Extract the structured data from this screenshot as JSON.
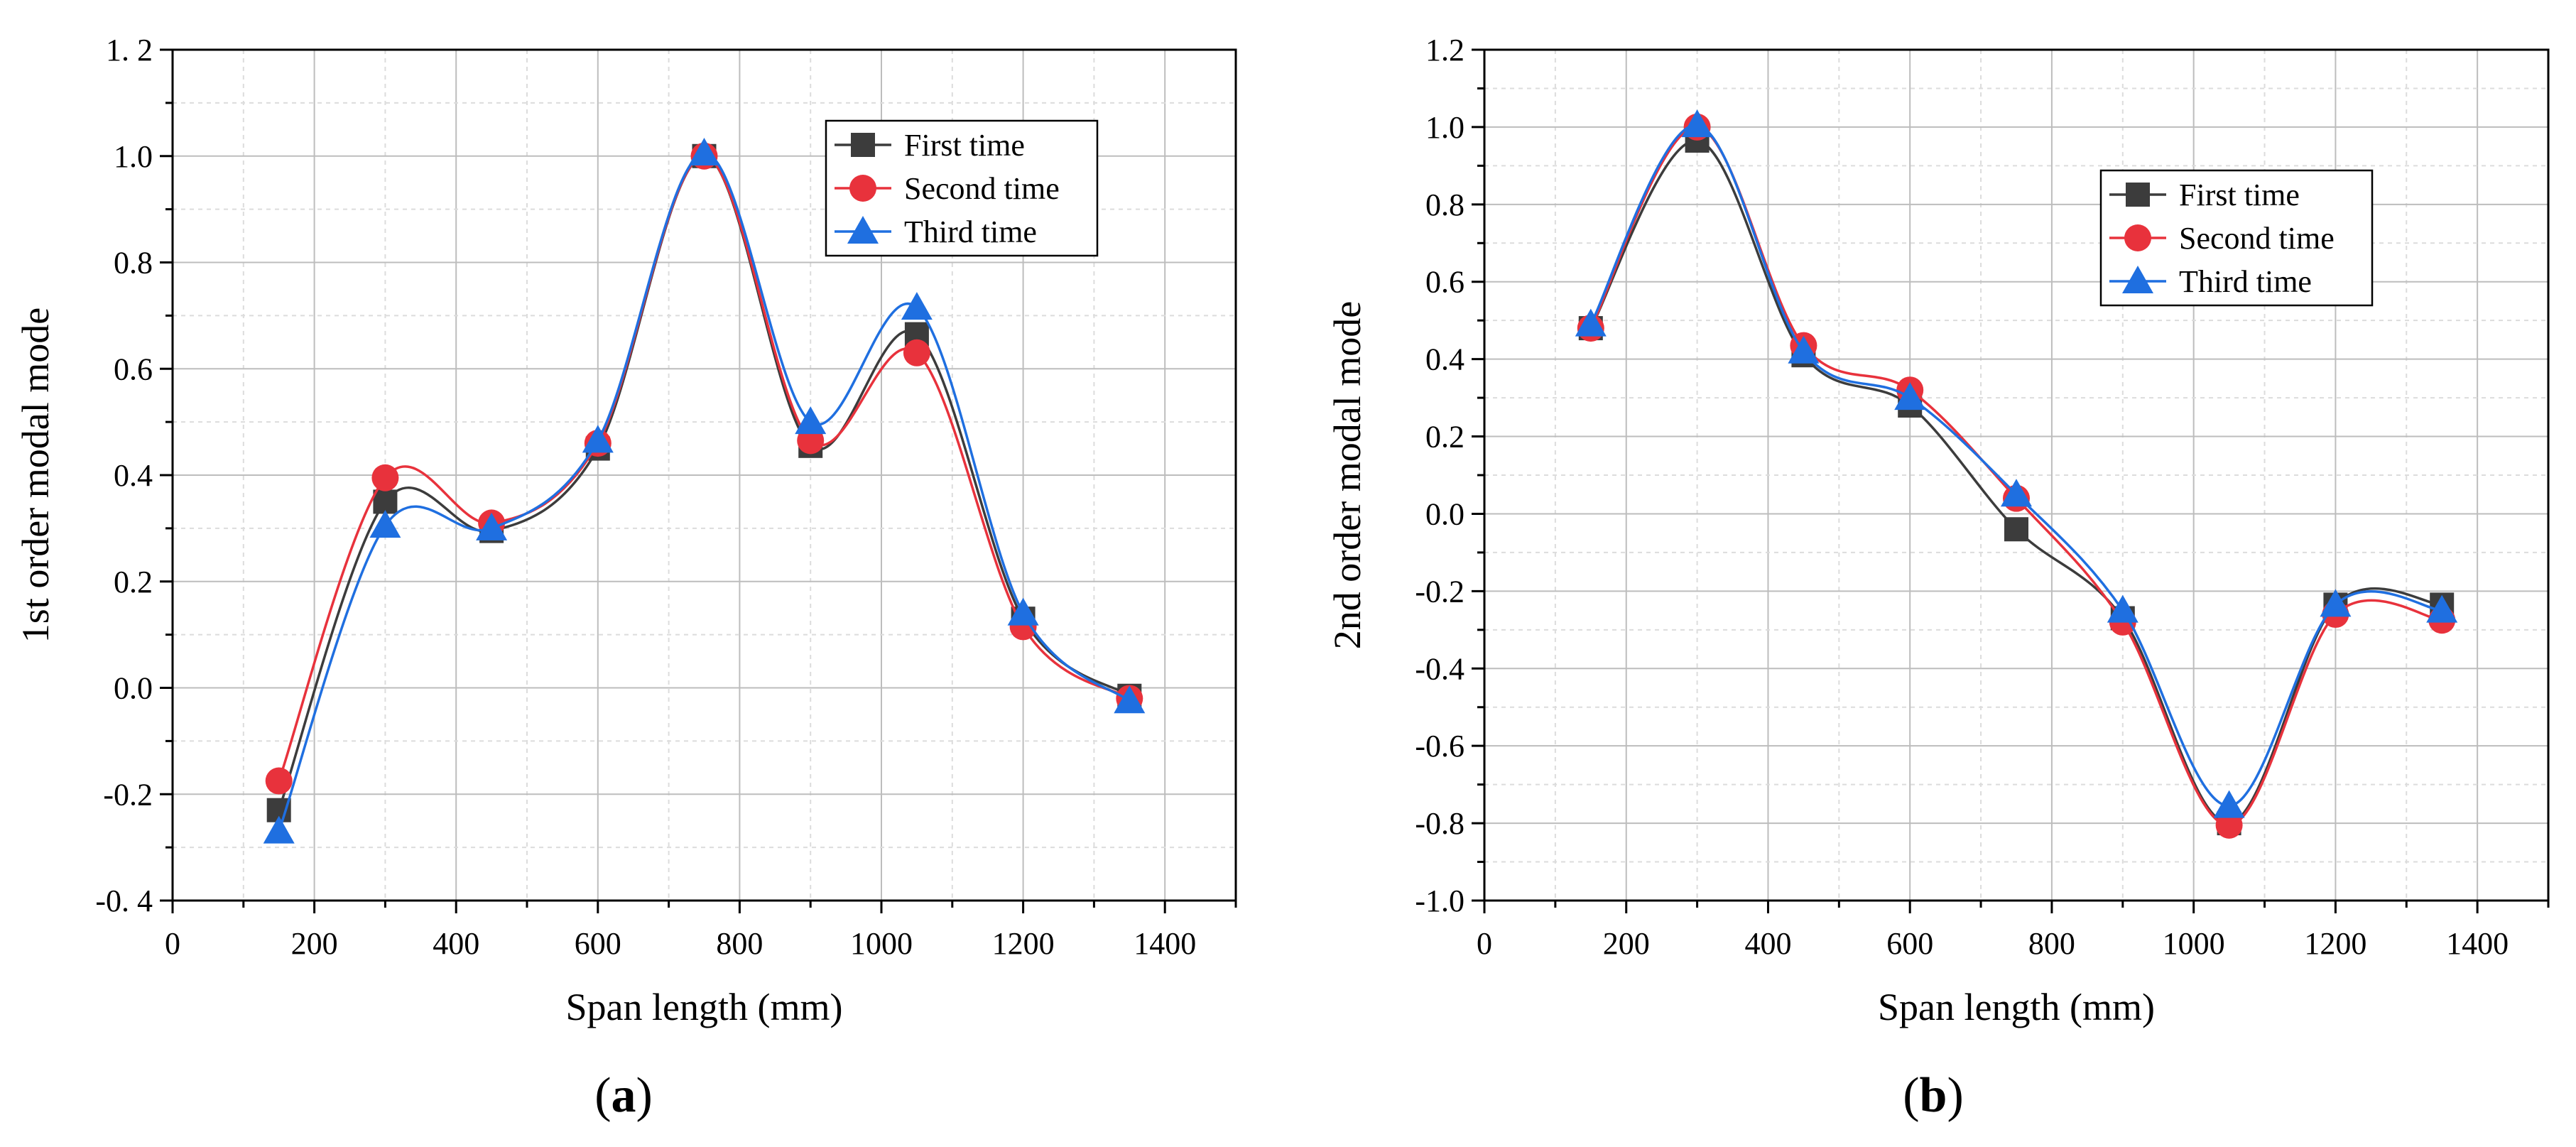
{
  "chart_data": [
    {
      "type": "line",
      "panel_label": "a",
      "xlabel": "Span length (mm)",
      "ylabel": "1st order modal mode",
      "xlim": [
        0,
        1500
      ],
      "ylim": [
        -0.4,
        1.2
      ],
      "x_ticks": [
        0,
        200,
        400,
        600,
        800,
        1000,
        1200,
        1400
      ],
      "y_ticks": [
        -0.4,
        -0.2,
        0.0,
        0.2,
        0.4,
        0.6,
        0.8,
        1.0,
        1.2
      ],
      "y_tick_labels": [
        "-0. 4",
        "-0.2",
        "0.0",
        "0.2",
        "0.4",
        "0.6",
        "0.8",
        "1.0",
        "1. 2"
      ],
      "grid": true,
      "legend_position": "top-right",
      "x": [
        150,
        300,
        450,
        600,
        750,
        900,
        1050,
        1200,
        1350
      ],
      "series": [
        {
          "name": "First time",
          "marker": "square",
          "color": "#3c3c3c",
          "values": [
            -0.23,
            0.35,
            0.295,
            0.45,
            1.0,
            0.455,
            0.665,
            0.13,
            -0.015
          ]
        },
        {
          "name": "Second time",
          "marker": "circle",
          "color": "#e8323c",
          "values": [
            -0.175,
            0.395,
            0.31,
            0.46,
            1.0,
            0.465,
            0.63,
            0.115,
            -0.02
          ]
        },
        {
          "name": "Third time",
          "marker": "triangle",
          "color": "#1f6fe0",
          "values": [
            -0.27,
            0.305,
            0.3,
            0.465,
            1.005,
            0.5,
            0.715,
            0.14,
            -0.025
          ]
        }
      ]
    },
    {
      "type": "line",
      "panel_label": "b",
      "xlabel": "Span length (mm)",
      "ylabel": "2nd order modal mode",
      "xlim": [
        0,
        1500
      ],
      "ylim": [
        -1.0,
        1.2
      ],
      "x_ticks": [
        0,
        200,
        400,
        600,
        800,
        1000,
        1200,
        1400
      ],
      "y_ticks": [
        -1.0,
        -0.8,
        -0.6,
        -0.4,
        -0.2,
        0.0,
        0.2,
        0.4,
        0.6,
        0.8,
        1.0,
        1.2
      ],
      "y_tick_labels": [
        "-1.0",
        "-0.8",
        "-0.6",
        "-0.4",
        "-0.2",
        "0.0",
        "0.2",
        "0.4",
        "0.6",
        "0.8",
        "1.0",
        "1.2"
      ],
      "grid": true,
      "legend_position": "top-right",
      "x": [
        150,
        300,
        450,
        600,
        750,
        900,
        1050,
        1200,
        1350
      ],
      "series": [
        {
          "name": "First time",
          "marker": "square",
          "color": "#3c3c3c",
          "values": [
            0.48,
            0.965,
            0.41,
            0.28,
            -0.04,
            -0.27,
            -0.8,
            -0.235,
            -0.235
          ]
        },
        {
          "name": "Second time",
          "marker": "circle",
          "color": "#e8323c",
          "values": [
            0.48,
            1.0,
            0.435,
            0.32,
            0.04,
            -0.28,
            -0.805,
            -0.26,
            -0.275
          ]
        },
        {
          "name": "Third time",
          "marker": "triangle",
          "color": "#1f6fe0",
          "values": [
            0.49,
            1.005,
            0.42,
            0.3,
            0.05,
            -0.25,
            -0.755,
            -0.235,
            -0.25
          ]
        }
      ]
    }
  ]
}
